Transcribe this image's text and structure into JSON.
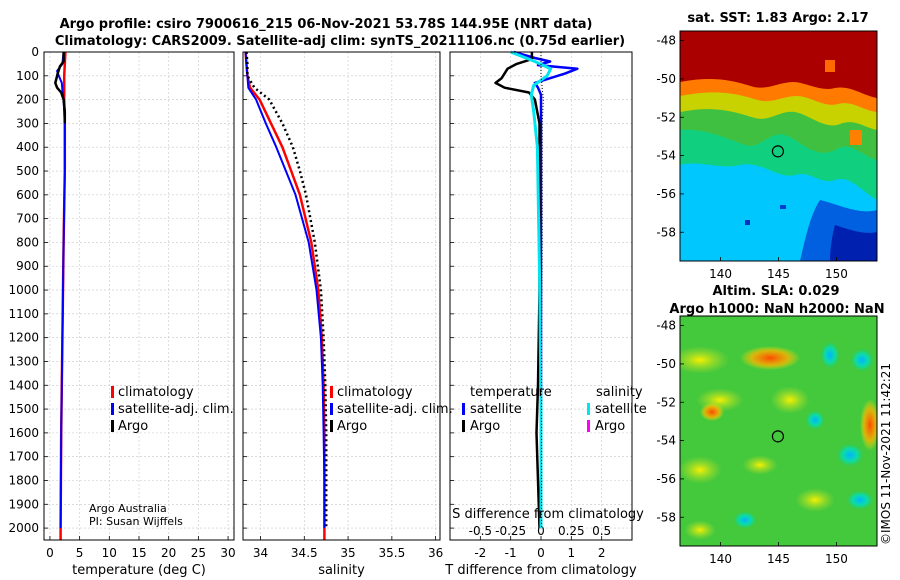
{
  "title_line1": "Argo profile: csiro 7900616_215 06-Nov-2021 53.78S 144.95E (NRT data)",
  "title_line2": "Climatology: CARS2009. Satellite-adj clim: synTS_20211106.nc (0.75d earlier)",
  "credit_line1": "Argo Australia",
  "credit_line2": "PI: Susan Wijffels",
  "stamp": "©IMOS 11-Nov-2021 11:42:21",
  "colors": {
    "climatology": "#ff0000",
    "satellite": "#0000ff",
    "argo": "#000000",
    "sat_salinity": "#00e5ee",
    "argo_salinity": "#ff00ff"
  },
  "chart_data": [
    {
      "type": "line",
      "name": "temperature",
      "xlabel": "temperature (deg C)",
      "ylabel": "",
      "xlim": [
        -1,
        31
      ],
      "ylim": [
        2050,
        0
      ],
      "xticks": [
        0,
        5,
        10,
        15,
        20,
        25,
        30
      ],
      "xtick_labels": [
        "0",
        "5",
        "10",
        "15",
        "20",
        "25",
        "30"
      ],
      "yticks": [
        0,
        100,
        200,
        300,
        400,
        500,
        600,
        700,
        800,
        900,
        1000,
        1100,
        1200,
        1300,
        1400,
        1500,
        1600,
        1700,
        1800,
        1900,
        2000
      ],
      "ytick_labels": [
        "0",
        "100",
        "200",
        "300",
        "400",
        "500",
        "600",
        "700",
        "800",
        "900",
        "1000",
        "1100",
        "1200",
        "1300",
        "1400",
        "1500",
        "1600",
        "1700",
        "1800",
        "1900",
        "2000"
      ],
      "legend": [
        "climatology",
        "satellite-adj. clim.",
        "Argo"
      ],
      "series": [
        {
          "name": "climatology",
          "color": "#ff0000",
          "width": 2.5,
          "dash": "",
          "depth": [
            0,
            50,
            100,
            150,
            200,
            300,
            500,
            800,
            1200,
            1600,
            2000,
            2050
          ],
          "values": [
            2.6,
            2.5,
            2.4,
            2.4,
            2.4,
            2.5,
            2.5,
            2.3,
            2.1,
            1.9,
            1.8,
            1.8
          ]
        },
        {
          "name": "satellite-adj. clim.",
          "color": "#0000ff",
          "width": 2,
          "dash": "",
          "depth": [
            0,
            50,
            80,
            100,
            130,
            160,
            200,
            300,
            500,
            800,
            1200,
            1600,
            2000
          ],
          "values": [
            2.3,
            2.1,
            1.2,
            1.5,
            2.0,
            2.1,
            2.3,
            2.5,
            2.5,
            2.3,
            2.1,
            1.9,
            1.8
          ]
        },
        {
          "name": "Argo",
          "color": "#000000",
          "width": 2.5,
          "dash": "",
          "depth": [
            0,
            40,
            60,
            90,
            110,
            130,
            150,
            170,
            200,
            250,
            300
          ],
          "values": [
            2.3,
            2.3,
            1.7,
            1.3,
            1.1,
            0.9,
            1.2,
            1.9,
            2.3,
            2.5,
            2.5
          ]
        }
      ]
    },
    {
      "type": "line",
      "name": "salinity",
      "xlabel": "salinity",
      "ylabel": "",
      "xlim": [
        33.8,
        36.05
      ],
      "ylim": [
        2050,
        0
      ],
      "xticks": [
        34,
        34.5,
        35,
        35.5,
        36
      ],
      "xtick_labels": [
        "34",
        "34.5",
        "35",
        "35.5",
        "36"
      ],
      "yticks": [
        0,
        100,
        200,
        300,
        400,
        500,
        600,
        700,
        800,
        900,
        1000,
        1100,
        1200,
        1300,
        1400,
        1500,
        1600,
        1700,
        1800,
        1900,
        2000
      ],
      "legend": [
        "climatology",
        "satellite-adj. clim.",
        "Argo"
      ],
      "series": [
        {
          "name": "climatology",
          "color": "#ff0000",
          "width": 2.5,
          "dash": "",
          "depth": [
            0,
            50,
            100,
            150,
            200,
            300,
            400,
            500,
            600,
            800,
            1000,
            1200,
            1400,
            1600,
            1800,
            2000,
            2050
          ],
          "values": [
            33.83,
            33.84,
            33.85,
            33.88,
            33.99,
            34.12,
            34.25,
            34.35,
            34.45,
            34.58,
            34.66,
            34.7,
            34.72,
            34.73,
            34.73,
            34.73,
            34.73
          ]
        },
        {
          "name": "satellite-adj. clim.",
          "color": "#0000ff",
          "width": 2,
          "dash": "",
          "depth": [
            0,
            60,
            100,
            150,
            200,
            300,
            400,
            500,
            600,
            800,
            1000,
            1200,
            1400,
            1600,
            1800,
            2000
          ],
          "values": [
            33.83,
            33.84,
            33.85,
            33.86,
            33.95,
            34.06,
            34.18,
            34.29,
            34.4,
            34.55,
            34.64,
            34.69,
            34.71,
            34.72,
            34.73,
            34.73
          ]
        },
        {
          "name": "Argo",
          "color": "#000000",
          "width": 2.5,
          "dash": "2 3",
          "depth": [
            0,
            50,
            100,
            150,
            200,
            300,
            400,
            500,
            600,
            800,
            1000,
            1200,
            1400,
            1600,
            1800,
            2000
          ],
          "values": [
            33.84,
            33.85,
            33.85,
            33.93,
            34.1,
            34.25,
            34.37,
            34.45,
            34.52,
            34.62,
            34.69,
            34.72,
            34.74,
            34.75,
            34.75,
            34.75
          ]
        }
      ]
    },
    {
      "type": "line",
      "name": "difference",
      "xlabel": "T difference from climatology",
      "ylabel": "",
      "top_xlabel": "S difference from climatology",
      "xlim": [
        -3,
        3
      ],
      "ylim": [
        2050,
        0
      ],
      "xticks": [
        -2,
        -1,
        0,
        1,
        2
      ],
      "xtick_labels": [
        "-2",
        "-1",
        "0",
        "1",
        "2"
      ],
      "s_ticks": [
        -0.5,
        -0.25,
        0,
        0.25,
        0.5
      ],
      "s_tick_labels": [
        "-0.5",
        "-0.25",
        "0",
        "0.25",
        "0.5"
      ],
      "yticks": [
        0,
        100,
        200,
        300,
        400,
        500,
        600,
        700,
        800,
        900,
        1000,
        1100,
        1200,
        1300,
        1400,
        1500,
        1600,
        1700,
        1800,
        1900,
        2000
      ],
      "legend_temperature_title": "temperature",
      "legend_salinity_title": "salinity",
      "legend_temperature": [
        "satellite",
        "Argo"
      ],
      "legend_salinity": [
        "satellite",
        "Argo"
      ],
      "series": [
        {
          "name": "T satellite",
          "color": "#0000ff",
          "width": 2.5,
          "dash": "",
          "depth": [
            0,
            25,
            40,
            55,
            70,
            90,
            110,
            130,
            150,
            180,
            220,
            300,
            500,
            1000,
            1500,
            2000
          ],
          "values": [
            -0.9,
            -0.2,
            0.3,
            -0.1,
            1.2,
            0.8,
            0.3,
            -0.2,
            -0.1,
            0.0,
            0.0,
            0.0,
            0.0,
            0.0,
            0.0,
            0.0
          ]
        },
        {
          "name": "T Argo",
          "color": "#000000",
          "width": 2.5,
          "dash": "",
          "depth": [
            0,
            30,
            50,
            70,
            90,
            110,
            130,
            150,
            170,
            200,
            300,
            500,
            800,
            1000,
            1400,
            1600,
            1800,
            2000
          ],
          "values": [
            -0.3,
            -0.3,
            -0.8,
            -1.1,
            -1.2,
            -1.3,
            -1.5,
            -1.2,
            -0.4,
            -0.2,
            -0.05,
            -0.05,
            -0.05,
            -0.05,
            -0.1,
            -0.15,
            -0.1,
            -0.05
          ]
        },
        {
          "name": "S satellite",
          "color": "#00e5ee",
          "width": 3,
          "dash": "",
          "depth": [
            0,
            40,
            70,
            100,
            140,
            180,
            250,
            400,
            700,
            1000,
            1500,
            2000
          ],
          "values": [
            -0.25,
            -0.05,
            0.08,
            0.05,
            -0.06,
            -0.08,
            -0.06,
            -0.03,
            -0.02,
            -0.01,
            0.0,
            0.0
          ]
        },
        {
          "name": "S Argo",
          "color": "#000000",
          "width": 1,
          "dash": "1 2",
          "depth": [
            0,
            100,
            200,
            300,
            500,
            800,
            1200,
            1600,
            2000
          ],
          "values": [
            0.0,
            0.0,
            0.02,
            0.01,
            0.01,
            0.01,
            0.005,
            0.005,
            0.005
          ]
        }
      ]
    },
    {
      "type": "heatmap",
      "name": "sst_map",
      "title": "sat. SST: 1.83 Argo: 2.17",
      "xlim": [
        136.5,
        153.5
      ],
      "ylim": [
        -59.5,
        -47.5
      ],
      "xticks": [
        140,
        145,
        150
      ],
      "xtick_labels": [
        "140",
        "145",
        "150"
      ],
      "yticks": [
        -48,
        -50,
        -52,
        -54,
        -56,
        -58
      ],
      "ytick_labels": [
        "-48",
        "-50",
        "-52",
        "-54",
        "-56",
        "-58"
      ],
      "marker": {
        "lon": 144.95,
        "lat": -53.78
      }
    },
    {
      "type": "heatmap",
      "name": "sla_map",
      "title_line1": "Altim. SLA: 0.029",
      "title_line2": "Argo h1000: NaN h2000: NaN",
      "xlim": [
        136.5,
        153.5
      ],
      "ylim": [
        -59.5,
        -47.5
      ],
      "xticks": [
        140,
        145,
        150
      ],
      "xtick_labels": [
        "140",
        "145",
        "150"
      ],
      "yticks": [
        -48,
        -50,
        -52,
        -54,
        -56,
        -58
      ],
      "ytick_labels": [
        "-48",
        "-50",
        "-52",
        "-54",
        "-56",
        "-58"
      ],
      "marker": {
        "lon": 144.95,
        "lat": -53.78
      }
    }
  ]
}
